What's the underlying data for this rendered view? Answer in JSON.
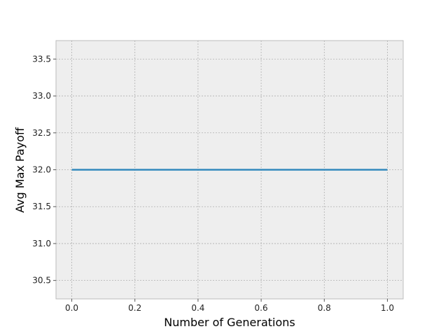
{
  "chart_data": {
    "type": "line",
    "title": "",
    "xlabel": "Number of Generations",
    "ylabel": "Avg Max Payoff",
    "xlim": [
      -0.05,
      1.05
    ],
    "ylim": [
      30.25,
      33.75
    ],
    "xticks": [
      0.0,
      0.2,
      0.4,
      0.6,
      0.8,
      1.0
    ],
    "xtick_labels": [
      "0.0",
      "0.2",
      "0.4",
      "0.6",
      "0.8",
      "1.0"
    ],
    "yticks": [
      30.5,
      31.0,
      31.5,
      32.0,
      32.5,
      33.0,
      33.5
    ],
    "ytick_labels": [
      "30.5",
      "31.0",
      "31.5",
      "32.0",
      "32.5",
      "33.0",
      "33.5"
    ],
    "grid": true,
    "legend": false,
    "series": [
      {
        "color": "#348abd",
        "x": [
          0,
          1
        ],
        "y": [
          32.0,
          32.0
        ]
      }
    ],
    "colors": {
      "background": "#eeeeee",
      "grid": "#b0b0b0",
      "frame": "#bcbcbc"
    }
  }
}
